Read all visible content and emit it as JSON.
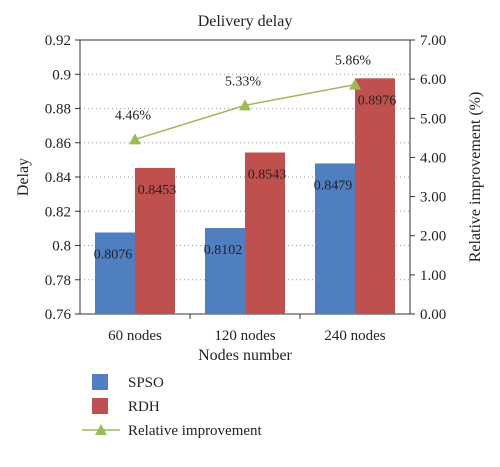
{
  "chart_data": {
    "type": "bar",
    "title": "Delivery delay",
    "xlabel": "Nodes number",
    "ylabel": "Delay",
    "y2label": "Relative improvement (%)",
    "categories": [
      "60 nodes",
      "120 nodes",
      "240 nodes"
    ],
    "ylim": [
      0.76,
      0.92
    ],
    "yticks": [
      "0.76",
      "0.78",
      "0.8",
      "0.82",
      "0.84",
      "0.86",
      "0.88",
      "0.9",
      "0.92"
    ],
    "y2lim": [
      0,
      7
    ],
    "y2ticks": [
      "0.00",
      "1.00",
      "2.00",
      "3.00",
      "4.00",
      "5.00",
      "6.00",
      "7.00"
    ],
    "grid": true,
    "legend_position": "bottom-left",
    "series": [
      {
        "name": "SPSO",
        "type": "bar",
        "color": "#4f7ec1",
        "values": [
          0.8076,
          0.8102,
          0.8479
        ],
        "labels": [
          "0.8076",
          "0.8102",
          "0.8479"
        ]
      },
      {
        "name": "RDH",
        "type": "bar",
        "color": "#c0504d",
        "values": [
          0.8453,
          0.8543,
          0.8976
        ],
        "labels": [
          "0.8453",
          "0.8543",
          "0.8976"
        ]
      },
      {
        "name": "Relative improvement",
        "type": "line",
        "axis": "secondary",
        "color": "#9bbb59",
        "values": [
          4.46,
          5.33,
          5.86
        ],
        "labels": [
          "4.46%",
          "5.33%",
          "5.86%"
        ]
      }
    ]
  }
}
